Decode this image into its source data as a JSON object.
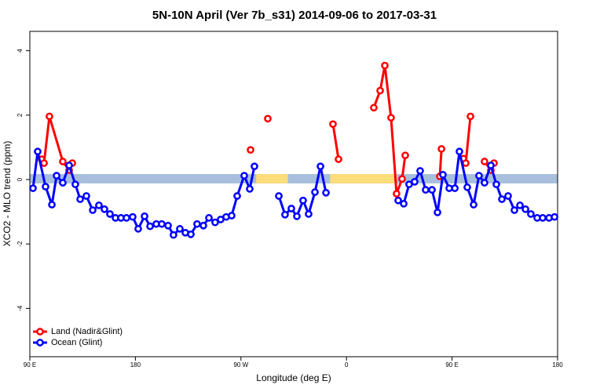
{
  "chart_data": {
    "type": "line",
    "title": "5N-10N April (Ver 7b_s31)   2014-09-06 to 2017-03-31",
    "x_label": "Longitude (deg E)",
    "y_label": "XCO2 - MLO trend (ppm)",
    "xlim": [
      90,
      540
    ],
    "ylim": [
      -5.5,
      4.6
    ],
    "xticks": [
      {
        "value": 90,
        "label": "90 E"
      },
      180,
      {
        "value": 270,
        "label": "90 W"
      },
      {
        "value": 360,
        "label": "0"
      },
      {
        "value": 450,
        "label": "90 E"
      },
      {
        "value": 540,
        "label": "180"
      }
    ],
    "yticks": [
      -4,
      -2,
      0,
      2,
      4
    ],
    "band": {
      "y": [
        -0.12,
        0.17
      ],
      "color": "#a7bfdc"
    },
    "highlights": {
      "color": "#fddc7a",
      "ranges": [
        [
          283,
          310
        ],
        [
          346,
          403
        ]
      ]
    },
    "legend": "bottom-left",
    "series": [
      {
        "name": "Land (Nadir&Glint)",
        "color": "#ff0000",
        "x": [
          100,
          102.1,
          106.7,
          118.1,
          123.5,
          126.2,
          null,
          278.2,
          null,
          292.9,
          null,
          348.5,
          353.2,
          null,
          383.3,
          388.7,
          392.7,
          398,
          402.7,
          407.4,
          410.1,
          null,
          439.6,
          441,
          null,
          459.7,
          461.7,
          465.7,
          null,
          477.7,
          483.1,
          485.8
        ],
        "values": [
          0.63,
          0.51,
          1.96,
          0.56,
          0.29,
          0.51,
          null,
          0.92,
          null,
          1.89,
          null,
          1.72,
          0.63,
          null,
          2.23,
          2.76,
          3.54,
          1.92,
          -0.44,
          0.02,
          0.75,
          null,
          0.1,
          0.95,
          null,
          0.65,
          0.51,
          1.96,
          null,
          0.56,
          0.29,
          0.51
        ]
      },
      {
        "name": "Ocean (Glint)",
        "color": "#0000ff",
        "x": [
          92.7,
          96.7,
          103.4,
          108.8,
          112.8,
          118.1,
          123.5,
          128.8,
          132.9,
          138.2,
          143.6,
          148.9,
          153.6,
          158.3,
          163,
          167.7,
          172.4,
          177.7,
          182.4,
          187.8,
          192.5,
          197.8,
          202.5,
          207.9,
          212.5,
          217.9,
          222.6,
          227.3,
          232.6,
          238,
          242.7,
          248,
          252.7,
          257.4,
          262.1,
          266.8,
          272.8,
          277.5,
          281.5,
          null,
          302.3,
          307.6,
          313,
          317.7,
          323,
          327.7,
          333.1,
          337.8,
          342.5,
          null,
          404.1,
          408.8,
          413.4,
          418.1,
          422.8,
          427.5,
          432.9,
          437.6,
          442.2,
          447.6,
          452.4,
          456.3,
          463,
          468.4,
          473,
          477.7,
          483.1,
          487.8,
          492.5,
          497.8,
          503.2,
          507.9,
          512.6,
          517.2,
          522.6,
          527.3,
          532.7,
          537.4
        ],
        "values": [
          -0.27,
          0.87,
          -0.22,
          -0.78,
          0.12,
          -0.1,
          0.44,
          -0.15,
          -0.61,
          -0.51,
          -0.95,
          -0.8,
          -0.92,
          -1.07,
          -1.19,
          -1.19,
          -1.19,
          -1.16,
          -1.53,
          -1.14,
          -1.45,
          -1.38,
          -1.38,
          -1.43,
          -1.72,
          -1.53,
          -1.65,
          -1.7,
          -1.38,
          -1.43,
          -1.19,
          -1.33,
          -1.24,
          -1.16,
          -1.12,
          -0.51,
          0.12,
          -0.29,
          0.41,
          null,
          -0.51,
          -1.09,
          -0.9,
          -1.14,
          -0.65,
          -1.07,
          -0.39,
          0.41,
          -0.41,
          null,
          -0.65,
          -0.75,
          -0.15,
          -0.07,
          0.27,
          -0.32,
          -0.32,
          -1.02,
          0.15,
          -0.27,
          -0.27,
          0.87,
          -0.24,
          -0.78,
          0.12,
          -0.1,
          0.44,
          -0.15,
          -0.61,
          -0.51,
          -0.95,
          -0.8,
          -0.92,
          -1.07,
          -1.19,
          -1.19,
          -1.19,
          -1.16
        ]
      }
    ]
  }
}
